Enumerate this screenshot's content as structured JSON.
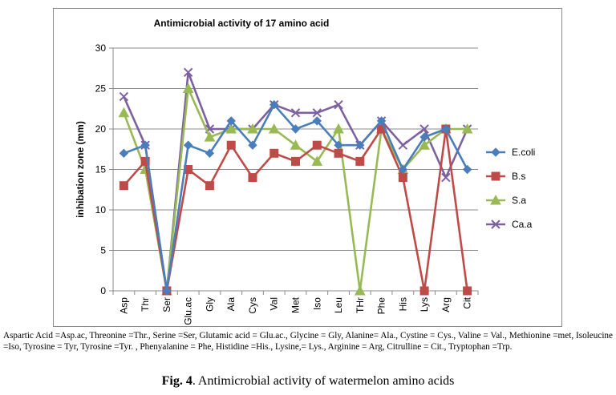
{
  "figure": {
    "note": "Aspartic Acid =Asp.ac, Threonine =Thr., Serine =Ser, Glutamic acid = Glu.ac., Glycine = Gly, Alanine= Ala., Cystine = Cys., Valine = Val., Methionine =met, Isoleucine =Iso, Tyrosine = Tyr, Tyrosine =Tyr. , Phenyalanine = Phe, Histidine =His., Lysine,= Lys., Arginine = Arg, Citrulline  = Cit., Tryptophan =Trp.",
    "caption_label": "Fig. 4",
    "caption_text": ". Antimicrobial activity of watermelon amino acids"
  },
  "chart_data": {
    "type": "line",
    "title": "Antimicrobial activity of 17 amino acid",
    "xlabel": "",
    "ylabel": "inhibation zone (mm)",
    "ylim": [
      0,
      30
    ],
    "yticks": [
      0,
      5,
      10,
      15,
      20,
      25,
      30
    ],
    "grid": "horizontal",
    "legend_position": "right",
    "categories": [
      "Asp",
      "Thr",
      "Ser",
      "Glu.ac",
      "Gly",
      "Ala",
      "Cys",
      "Val",
      "Met",
      "Iso",
      "Leu",
      "THr",
      "Phe",
      "His",
      "Lys",
      "Arg",
      "Cit"
    ],
    "series": [
      {
        "name": "E.coli",
        "color": "#4a7ebb",
        "marker": "diamond",
        "values": [
          17,
          18,
          0,
          18,
          17,
          21,
          18,
          23,
          20,
          21,
          18,
          18,
          21,
          15,
          19,
          20,
          15
        ]
      },
      {
        "name": "B.s",
        "color": "#be4b48",
        "marker": "square",
        "values": [
          13,
          16,
          0,
          15,
          13,
          18,
          14,
          17,
          16,
          18,
          17,
          16,
          20,
          14,
          0,
          20,
          0
        ]
      },
      {
        "name": "S.a",
        "color": "#98b954",
        "marker": "triangle",
        "values": [
          22,
          15,
          0,
          25,
          19,
          20,
          20,
          20,
          18,
          16,
          20,
          0,
          20,
          15,
          18,
          20,
          20
        ]
      },
      {
        "name": "Ca.a",
        "color": "#7d60a0",
        "marker": "cross",
        "values": [
          24,
          18,
          0,
          27,
          20,
          20,
          20,
          23,
          22,
          22,
          23,
          18,
          21,
          18,
          20,
          14,
          20
        ]
      }
    ]
  }
}
